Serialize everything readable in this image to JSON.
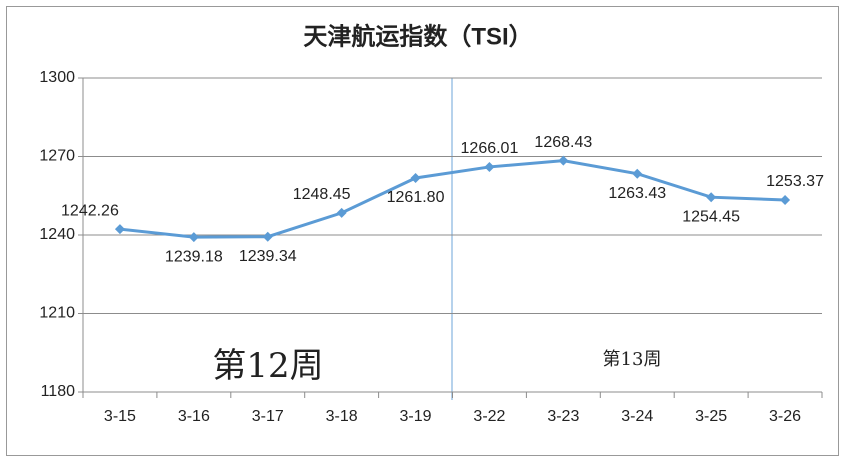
{
  "chart_data": {
    "type": "line",
    "title": "天津航运指数（TSI）",
    "categories": [
      "3-15",
      "3-16",
      "3-17",
      "3-18",
      "3-19",
      "3-22",
      "3-23",
      "3-24",
      "3-25",
      "3-26"
    ],
    "series": [
      {
        "name": "TSI",
        "color": "#5b9bd5",
        "values": [
          1242.26,
          1239.18,
          1239.34,
          1248.45,
          1261.8,
          1266.01,
          1268.43,
          1263.43,
          1254.45,
          1253.37
        ],
        "value_labels": [
          "1242.26",
          "1239.18",
          "1239.34",
          "1248.45",
          "1261.80",
          "1266.01",
          "1268.43",
          "1263.43",
          "1254.45",
          "1253.37"
        ]
      }
    ],
    "ylim": [
      1180,
      1300
    ],
    "yticks": [
      1180,
      1210,
      1240,
      1270,
      1300
    ],
    "grid": true,
    "annotations": [
      "第12周",
      "第13周"
    ]
  }
}
